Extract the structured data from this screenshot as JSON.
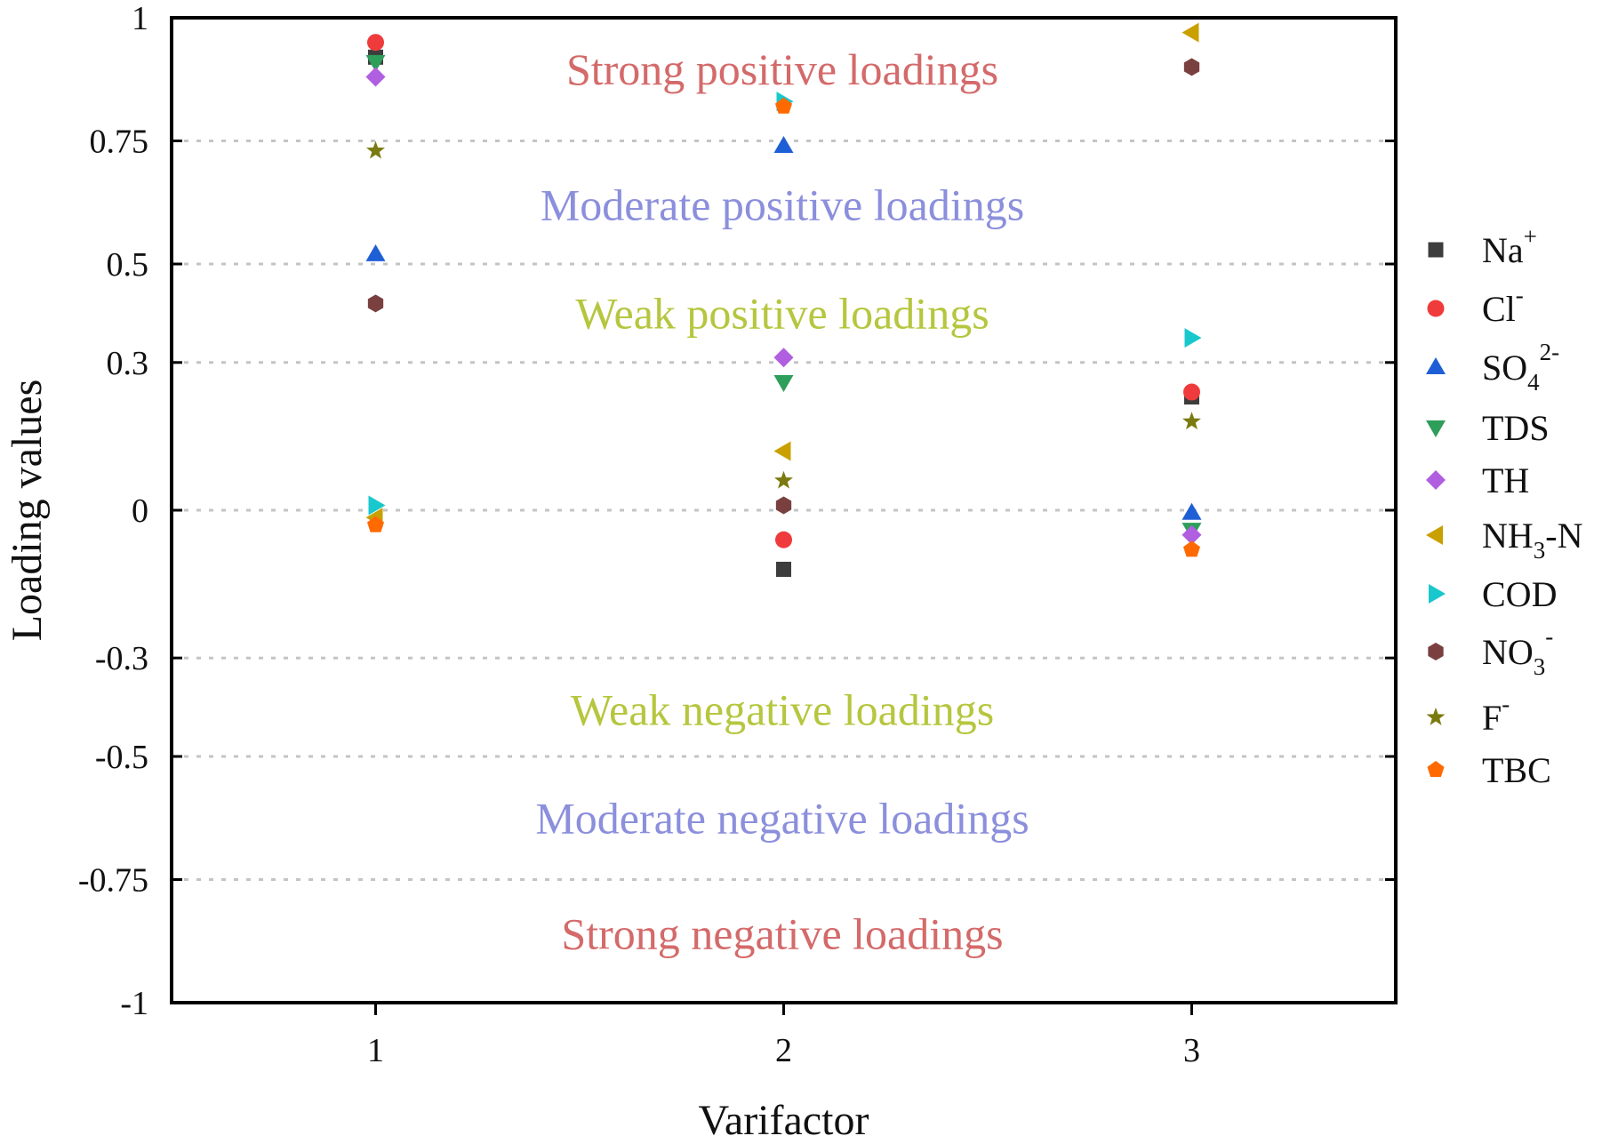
{
  "chart_data": {
    "type": "scatter",
    "xlabel": "Varifactor",
    "ylabel": "Loading values",
    "xlim": [
      0.5,
      3.5
    ],
    "ylim": [
      -1,
      1
    ],
    "x_ticks": [
      1,
      2,
      3
    ],
    "x_tick_labels": [
      "1",
      "2",
      "3"
    ],
    "y_ticks": [
      -1,
      -0.75,
      -0.5,
      -0.3,
      0,
      0.3,
      0.5,
      0.75,
      1
    ],
    "y_tick_labels": [
      "-1",
      "-0.75",
      "-0.5",
      "-0.3",
      "0",
      "0.3",
      "0.5",
      "0.75",
      "1"
    ],
    "grid": "horizontal dotted at y ticks",
    "legend_position": "right",
    "bands": [
      {
        "text": "Strong positive loadings",
        "y": 0.895,
        "color": "#d46a6a"
      },
      {
        "text": "Moderate positive loadings",
        "y": 0.62,
        "color": "#8b8fdc"
      },
      {
        "text": "Weak positive loadings",
        "y": 0.4,
        "color": "#b6c63e"
      },
      {
        "text": "Weak negative loadings",
        "y": -0.405,
        "color": "#b6c63e"
      },
      {
        "text": "Moderate negative loadings",
        "y": -0.625,
        "color": "#8b8fdc"
      },
      {
        "text": "Strong negative loadings",
        "y": -0.86,
        "color": "#d46a6a"
      }
    ],
    "x": [
      1,
      2,
      3
    ],
    "series": [
      {
        "legend_base": "Na",
        "legend_sub": "",
        "legend_sup": "+",
        "marker": "square",
        "color": "#3d3d3d",
        "values": [
          0.92,
          -0.12,
          0.23
        ]
      },
      {
        "legend_base": "Cl",
        "legend_sub": "",
        "legend_sup": "-",
        "marker": "circle",
        "color": "#ef3b3b",
        "values": [
          0.95,
          -0.06,
          0.24
        ]
      },
      {
        "legend_base": "SO",
        "legend_sub": "4",
        "legend_sup": "2-",
        "marker": "triangle-up",
        "color": "#1f5fd6",
        "values": [
          0.52,
          0.74,
          -0.005
        ]
      },
      {
        "legend_base": "TDS",
        "legend_sub": "",
        "legend_sup": "",
        "marker": "triangle-down",
        "color": "#2e9e5b",
        "values": [
          0.91,
          0.26,
          -0.04
        ]
      },
      {
        "legend_base": "TH",
        "legend_sub": "",
        "legend_sup": "",
        "marker": "diamond",
        "color": "#b05fe0",
        "values": [
          0.88,
          0.31,
          -0.05
        ]
      },
      {
        "legend_base": "NH",
        "legend_sub": "3",
        "legend_sup": "",
        "legend_suffix": "-N",
        "marker": "triangle-left",
        "color": "#c9a000",
        "values": [
          -0.015,
          0.12,
          0.97
        ]
      },
      {
        "legend_base": "COD",
        "legend_sub": "",
        "legend_sup": "",
        "marker": "triangle-right",
        "color": "#19c8cc",
        "values": [
          0.01,
          0.83,
          0.35
        ]
      },
      {
        "legend_base": "NO",
        "legend_sub": "3",
        "legend_sup": "-",
        "marker": "hexagon",
        "color": "#7a4040",
        "values": [
          0.42,
          0.01,
          0.9
        ]
      },
      {
        "legend_base": "F",
        "legend_sub": "",
        "legend_sup": "-",
        "marker": "star",
        "color": "#7a7a10",
        "values": [
          0.73,
          0.06,
          0.18
        ]
      },
      {
        "legend_base": "TBC",
        "legend_sub": "",
        "legend_sup": "",
        "marker": "pentagon",
        "color": "#ff6a00",
        "values": [
          -0.03,
          0.82,
          -0.08
        ]
      }
    ]
  }
}
